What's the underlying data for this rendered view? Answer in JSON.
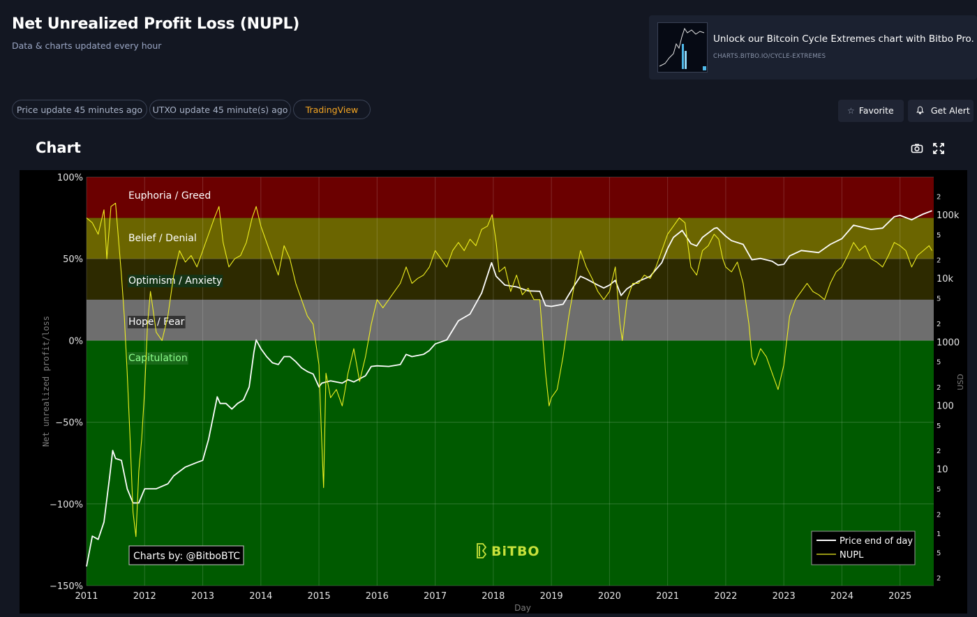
{
  "header": {
    "title": "Net Unrealized Profit Loss (NUPL)",
    "subtitle": "Data & charts updated every hour"
  },
  "promo": {
    "text": "Unlock our Bitcoin Cycle Extremes chart with Bitbo Pro.",
    "url": "CHARTS.BITBO.IO/CYCLE-EXTREMES"
  },
  "status_pills": {
    "price_update": "Price update 45 minutes ago",
    "utxo_update": "UTXO update 45 minute(s) ago",
    "tradingview": "TradingView"
  },
  "actions": {
    "favorite": "Favorite",
    "get_alert": "Get Alert"
  },
  "section": {
    "heading": "Chart"
  },
  "icons": [
    "camera-icon",
    "fullscreen-icon",
    "star-icon",
    "bell-icon"
  ],
  "colors": {
    "accent_orange": "#f5a623",
    "zone_euphoria": "#6b0000",
    "zone_belief": "#6b6500",
    "zone_optimism": "#2d2a00",
    "zone_hope": "#6e6e6e",
    "zone_capitulation": "#005a00",
    "price_line": "#ffffff",
    "nupl_line": "#f0f020"
  },
  "chart_data": {
    "type": "line",
    "xlabel": "Day",
    "ylabel": "Net unrealized profit/loss",
    "y2label": "USD",
    "x_ticks": [
      "2011",
      "2012",
      "2013",
      "2014",
      "2015",
      "2016",
      "2017",
      "2018",
      "2019",
      "2020",
      "2021",
      "2022",
      "2023",
      "2024",
      "2025"
    ],
    "ylim": [
      -150,
      100
    ],
    "y_ticks": [
      "100%",
      "50%",
      "0%",
      "−50%",
      "−100%",
      "−150%"
    ],
    "y_scale_right": "log",
    "y2_range": [
      0.15,
      400000
    ],
    "y2_ticks": [
      "2",
      "100k",
      "5",
      "2",
      "10k",
      "5",
      "2",
      "1000",
      "5",
      "2",
      "100",
      "5",
      "2",
      "10",
      "5",
      "2",
      "1",
      "5",
      "2"
    ],
    "grid": true,
    "zones": [
      {
        "label": "Euphoria / Greed",
        "from": 75,
        "to": 100
      },
      {
        "label": "Belief / Denial",
        "from": 50,
        "to": 75
      },
      {
        "label": "Optimism / Anxiety",
        "from": 25,
        "to": 50
      },
      {
        "label": "Hope / Fear",
        "from": 0,
        "to": 25
      },
      {
        "label": "Capitulation",
        "from": -150,
        "to": 0
      }
    ],
    "legend": {
      "placement": "bottom-right",
      "entries": [
        "Price end of day",
        "NUPL"
      ]
    },
    "credit": "Charts by: @BitboBTC",
    "watermark": "BiTBO",
    "series": [
      {
        "name": "NUPL",
        "unit": "%",
        "points": [
          [
            2011.0,
            75
          ],
          [
            2011.1,
            72
          ],
          [
            2011.2,
            65
          ],
          [
            2011.3,
            80
          ],
          [
            2011.35,
            50
          ],
          [
            2011.42,
            82
          ],
          [
            2011.5,
            84
          ],
          [
            2011.6,
            40
          ],
          [
            2011.65,
            15
          ],
          [
            2011.7,
            -20
          ],
          [
            2011.75,
            -60
          ],
          [
            2011.8,
            -105
          ],
          [
            2011.85,
            -120
          ],
          [
            2011.9,
            -80
          ],
          [
            2011.95,
            -60
          ],
          [
            2012.0,
            -30
          ],
          [
            2012.05,
            10
          ],
          [
            2012.1,
            30
          ],
          [
            2012.2,
            5
          ],
          [
            2012.3,
            0
          ],
          [
            2012.4,
            15
          ],
          [
            2012.5,
            40
          ],
          [
            2012.6,
            55
          ],
          [
            2012.7,
            48
          ],
          [
            2012.8,
            52
          ],
          [
            2012.9,
            45
          ],
          [
            2013.0,
            55
          ],
          [
            2013.1,
            65
          ],
          [
            2013.2,
            75
          ],
          [
            2013.28,
            82
          ],
          [
            2013.35,
            60
          ],
          [
            2013.45,
            45
          ],
          [
            2013.55,
            50
          ],
          [
            2013.65,
            52
          ],
          [
            2013.75,
            60
          ],
          [
            2013.85,
            75
          ],
          [
            2013.92,
            82
          ],
          [
            2014.0,
            70
          ],
          [
            2014.1,
            60
          ],
          [
            2014.2,
            50
          ],
          [
            2014.3,
            40
          ],
          [
            2014.4,
            58
          ],
          [
            2014.5,
            50
          ],
          [
            2014.6,
            35
          ],
          [
            2014.7,
            25
          ],
          [
            2014.8,
            15
          ],
          [
            2014.9,
            10
          ],
          [
            2015.0,
            -15
          ],
          [
            2015.04,
            -55
          ],
          [
            2015.08,
            -90
          ],
          [
            2015.12,
            -20
          ],
          [
            2015.2,
            -35
          ],
          [
            2015.3,
            -30
          ],
          [
            2015.4,
            -40
          ],
          [
            2015.5,
            -20
          ],
          [
            2015.6,
            -5
          ],
          [
            2015.7,
            -25
          ],
          [
            2015.8,
            -10
          ],
          [
            2015.9,
            10
          ],
          [
            2016.0,
            25
          ],
          [
            2016.1,
            20
          ],
          [
            2016.2,
            25
          ],
          [
            2016.3,
            30
          ],
          [
            2016.4,
            35
          ],
          [
            2016.5,
            45
          ],
          [
            2016.6,
            35
          ],
          [
            2016.7,
            38
          ],
          [
            2016.8,
            40
          ],
          [
            2016.9,
            45
          ],
          [
            2017.0,
            55
          ],
          [
            2017.1,
            50
          ],
          [
            2017.2,
            45
          ],
          [
            2017.3,
            55
          ],
          [
            2017.4,
            60
          ],
          [
            2017.5,
            55
          ],
          [
            2017.6,
            62
          ],
          [
            2017.7,
            58
          ],
          [
            2017.8,
            68
          ],
          [
            2017.9,
            70
          ],
          [
            2017.98,
            77
          ],
          [
            2018.05,
            60
          ],
          [
            2018.1,
            42
          ],
          [
            2018.2,
            45
          ],
          [
            2018.3,
            30
          ],
          [
            2018.4,
            40
          ],
          [
            2018.5,
            28
          ],
          [
            2018.6,
            32
          ],
          [
            2018.7,
            25
          ],
          [
            2018.8,
            25
          ],
          [
            2018.9,
            -20
          ],
          [
            2018.96,
            -40
          ],
          [
            2019.0,
            -35
          ],
          [
            2019.1,
            -30
          ],
          [
            2019.2,
            -10
          ],
          [
            2019.3,
            15
          ],
          [
            2019.4,
            35
          ],
          [
            2019.5,
            55
          ],
          [
            2019.6,
            45
          ],
          [
            2019.7,
            38
          ],
          [
            2019.8,
            30
          ],
          [
            2019.9,
            25
          ],
          [
            2020.0,
            30
          ],
          [
            2020.1,
            45
          ],
          [
            2020.18,
            10
          ],
          [
            2020.22,
            0
          ],
          [
            2020.3,
            25
          ],
          [
            2020.4,
            35
          ],
          [
            2020.5,
            35
          ],
          [
            2020.6,
            40
          ],
          [
            2020.7,
            38
          ],
          [
            2020.8,
            45
          ],
          [
            2020.9,
            55
          ],
          [
            2021.0,
            65
          ],
          [
            2021.1,
            70
          ],
          [
            2021.2,
            75
          ],
          [
            2021.3,
            72
          ],
          [
            2021.4,
            45
          ],
          [
            2021.5,
            40
          ],
          [
            2021.6,
            55
          ],
          [
            2021.7,
            58
          ],
          [
            2021.8,
            65
          ],
          [
            2021.88,
            62
          ],
          [
            2021.95,
            50
          ],
          [
            2022.0,
            45
          ],
          [
            2022.1,
            42
          ],
          [
            2022.2,
            48
          ],
          [
            2022.3,
            35
          ],
          [
            2022.4,
            10
          ],
          [
            2022.45,
            -10
          ],
          [
            2022.5,
            -15
          ],
          [
            2022.6,
            -5
          ],
          [
            2022.7,
            -10
          ],
          [
            2022.8,
            -20
          ],
          [
            2022.85,
            -25
          ],
          [
            2022.9,
            -30
          ],
          [
            2023.0,
            -15
          ],
          [
            2023.1,
            15
          ],
          [
            2023.2,
            25
          ],
          [
            2023.3,
            30
          ],
          [
            2023.4,
            35
          ],
          [
            2023.5,
            30
          ],
          [
            2023.6,
            28
          ],
          [
            2023.7,
            25
          ],
          [
            2023.8,
            35
          ],
          [
            2023.9,
            42
          ],
          [
            2024.0,
            45
          ],
          [
            2024.1,
            52
          ],
          [
            2024.2,
            60
          ],
          [
            2024.3,
            55
          ],
          [
            2024.4,
            58
          ],
          [
            2024.5,
            50
          ],
          [
            2024.6,
            48
          ],
          [
            2024.7,
            45
          ],
          [
            2024.8,
            52
          ],
          [
            2024.9,
            60
          ],
          [
            2025.0,
            58
          ],
          [
            2025.1,
            55
          ],
          [
            2025.2,
            45
          ],
          [
            2025.3,
            52
          ],
          [
            2025.4,
            55
          ],
          [
            2025.5,
            58
          ],
          [
            2025.55,
            55
          ]
        ]
      },
      {
        "name": "Price end of day",
        "unit": "USD",
        "points": [
          [
            2011.0,
            0.3
          ],
          [
            2011.1,
            0.9
          ],
          [
            2011.2,
            0.8
          ],
          [
            2011.3,
            1.5
          ],
          [
            2011.4,
            8
          ],
          [
            2011.45,
            20
          ],
          [
            2011.5,
            15
          ],
          [
            2011.6,
            14
          ],
          [
            2011.7,
            5
          ],
          [
            2011.8,
            3
          ],
          [
            2011.9,
            3
          ],
          [
            2012.0,
            5
          ],
          [
            2012.2,
            5
          ],
          [
            2012.4,
            6
          ],
          [
            2012.5,
            8
          ],
          [
            2012.7,
            11
          ],
          [
            2012.9,
            13
          ],
          [
            2013.0,
            14
          ],
          [
            2013.1,
            30
          ],
          [
            2013.25,
            140
          ],
          [
            2013.3,
            110
          ],
          [
            2013.4,
            110
          ],
          [
            2013.5,
            90
          ],
          [
            2013.6,
            110
          ],
          [
            2013.7,
            125
          ],
          [
            2013.8,
            200
          ],
          [
            2013.88,
            700
          ],
          [
            2013.92,
            1100
          ],
          [
            2014.0,
            800
          ],
          [
            2014.1,
            600
          ],
          [
            2014.2,
            480
          ],
          [
            2014.3,
            450
          ],
          [
            2014.4,
            600
          ],
          [
            2014.5,
            600
          ],
          [
            2014.6,
            500
          ],
          [
            2014.7,
            400
          ],
          [
            2014.8,
            350
          ],
          [
            2014.9,
            320
          ],
          [
            2015.0,
            200
          ],
          [
            2015.05,
            230
          ],
          [
            2015.2,
            250
          ],
          [
            2015.4,
            230
          ],
          [
            2015.5,
            260
          ],
          [
            2015.6,
            240
          ],
          [
            2015.8,
            300
          ],
          [
            2015.9,
            420
          ],
          [
            2016.0,
            430
          ],
          [
            2016.2,
            420
          ],
          [
            2016.4,
            450
          ],
          [
            2016.5,
            650
          ],
          [
            2016.6,
            600
          ],
          [
            2016.8,
            650
          ],
          [
            2016.9,
            750
          ],
          [
            2017.0,
            950
          ],
          [
            2017.2,
            1100
          ],
          [
            2017.4,
            2200
          ],
          [
            2017.6,
            2800
          ],
          [
            2017.8,
            6000
          ],
          [
            2017.97,
            18000
          ],
          [
            2018.05,
            11000
          ],
          [
            2018.2,
            8000
          ],
          [
            2018.4,
            7500
          ],
          [
            2018.6,
            6500
          ],
          [
            2018.8,
            6400
          ],
          [
            2018.9,
            3800
          ],
          [
            2019.0,
            3700
          ],
          [
            2019.2,
            4000
          ],
          [
            2019.4,
            8000
          ],
          [
            2019.5,
            11000
          ],
          [
            2019.6,
            10000
          ],
          [
            2019.8,
            8000
          ],
          [
            2019.9,
            7200
          ],
          [
            2020.0,
            8000
          ],
          [
            2020.1,
            9500
          ],
          [
            2020.2,
            5500
          ],
          [
            2020.3,
            7000
          ],
          [
            2020.5,
            9200
          ],
          [
            2020.7,
            11000
          ],
          [
            2020.9,
            18000
          ],
          [
            2021.0,
            30000
          ],
          [
            2021.1,
            45000
          ],
          [
            2021.25,
            58000
          ],
          [
            2021.4,
            36000
          ],
          [
            2021.5,
            33000
          ],
          [
            2021.6,
            45000
          ],
          [
            2021.8,
            62000
          ],
          [
            2021.85,
            64000
          ],
          [
            2022.0,
            47000
          ],
          [
            2022.1,
            40000
          ],
          [
            2022.3,
            35000
          ],
          [
            2022.45,
            20000
          ],
          [
            2022.6,
            21000
          ],
          [
            2022.8,
            19000
          ],
          [
            2022.9,
            16500
          ],
          [
            2023.0,
            17000
          ],
          [
            2023.1,
            23000
          ],
          [
            2023.3,
            28000
          ],
          [
            2023.6,
            26000
          ],
          [
            2023.8,
            35000
          ],
          [
            2024.0,
            43000
          ],
          [
            2024.2,
            70000
          ],
          [
            2024.5,
            60000
          ],
          [
            2024.7,
            63000
          ],
          [
            2024.9,
            95000
          ],
          [
            2025.0,
            100000
          ],
          [
            2025.2,
            85000
          ],
          [
            2025.3,
            95000
          ],
          [
            2025.4,
            105000
          ],
          [
            2025.55,
            118000
          ]
        ]
      }
    ]
  }
}
